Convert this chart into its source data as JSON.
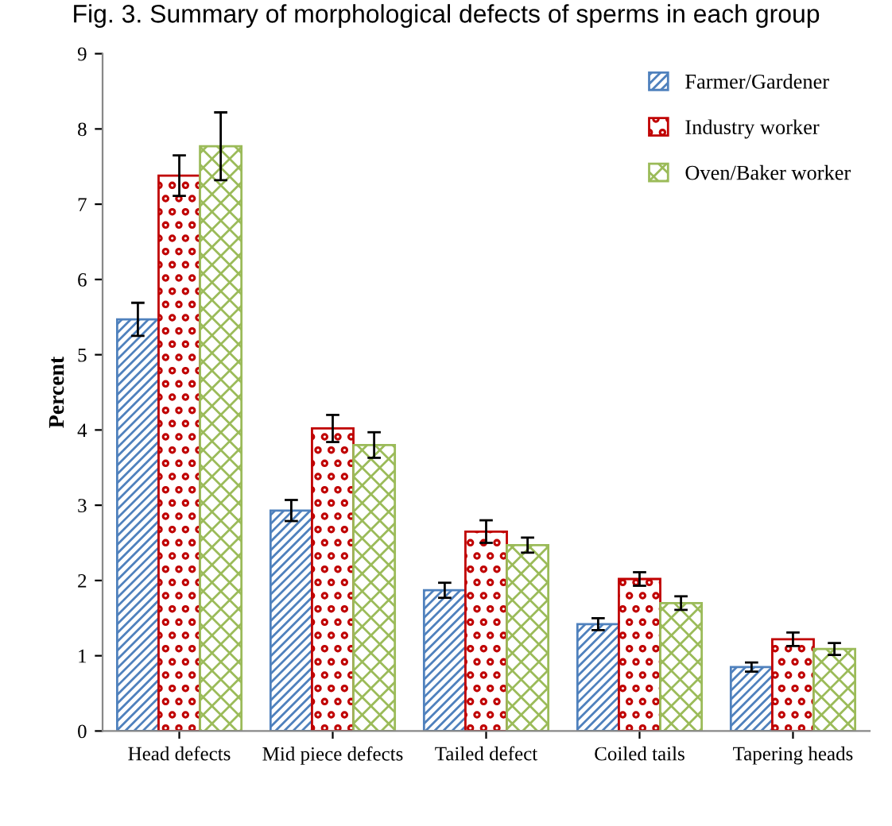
{
  "chart_data": {
    "type": "bar",
    "title": "Fig. 3. Summary of morphological defects of sperms in each group",
    "ylabel": "Percent",
    "categories": [
      "Head defects",
      "Mid piece defects",
      "Tailed defect",
      "Coiled tails",
      "Tapering heads"
    ],
    "series": [
      {
        "name": "Farmer/Gardener",
        "color": "#4f81bd",
        "values": [
          5.47,
          2.93,
          1.87,
          1.42,
          0.85
        ],
        "errors": [
          0.22,
          0.14,
          0.1,
          0.08,
          0.06
        ]
      },
      {
        "name": "Industry worker",
        "color": "#c00000",
        "values": [
          7.38,
          4.02,
          2.65,
          2.02,
          1.22
        ],
        "errors": [
          0.27,
          0.18,
          0.15,
          0.09,
          0.09
        ]
      },
      {
        "name": "Oven/Baker worker",
        "color": "#9bbb59",
        "values": [
          7.77,
          3.8,
          2.47,
          1.7,
          1.09
        ],
        "errors": [
          0.45,
          0.17,
          0.1,
          0.09,
          0.08
        ]
      }
    ],
    "ylim": [
      0,
      9
    ],
    "yticks": [
      0,
      1,
      2,
      3,
      4,
      5,
      6,
      7,
      8,
      9
    ],
    "grid": false,
    "legend": "top right"
  }
}
